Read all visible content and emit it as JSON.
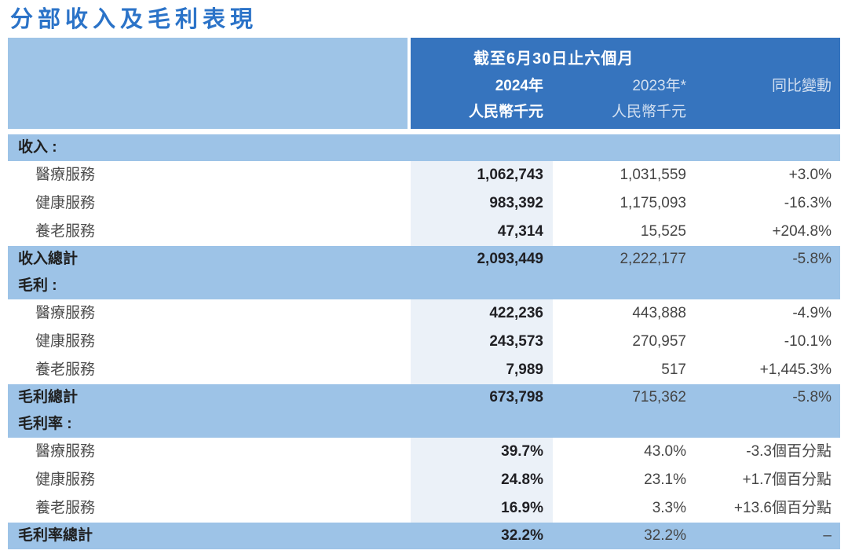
{
  "title": "分部收入及毛利表現",
  "colors": {
    "title_blue": "#2B73C8",
    "header_dark_blue": "#3674BE",
    "band_light_blue": "#9DC3E7",
    "column_2024_tint": "#EBF1F8"
  },
  "header": {
    "period": "截至6月30日止六個月",
    "col_2024": {
      "year": "2024年",
      "unit": "人民幣千元"
    },
    "col_2023": {
      "year": "2023年*",
      "unit": "人民幣千元"
    },
    "col_change": {
      "label": "同比變動"
    }
  },
  "rows": [
    {
      "type": "section",
      "label": "收入 :",
      "v2024": "",
      "v2023": "",
      "change": ""
    },
    {
      "type": "item",
      "label": "醫療服務",
      "v2024": "1,062,743",
      "v2023": "1,031,559",
      "change": "+3.0%"
    },
    {
      "type": "item",
      "label": "健康服務",
      "v2024": "983,392",
      "v2023": "1,175,093",
      "change": "-16.3%"
    },
    {
      "type": "item",
      "label": "養老服務",
      "v2024": "47,314",
      "v2023": "15,525",
      "change": "+204.8%"
    },
    {
      "type": "total",
      "label": "收入總計",
      "v2024": "2,093,449",
      "v2023": "2,222,177",
      "change": "-5.8%"
    },
    {
      "type": "section",
      "label": "毛利 :",
      "v2024": "",
      "v2023": "",
      "change": ""
    },
    {
      "type": "item",
      "label": "醫療服務",
      "v2024": "422,236",
      "v2023": "443,888",
      "change": "-4.9%"
    },
    {
      "type": "item",
      "label": "健康服務",
      "v2024": "243,573",
      "v2023": "270,957",
      "change": "-10.1%"
    },
    {
      "type": "item",
      "label": "養老服務",
      "v2024": "7,989",
      "v2023": "517",
      "change": "+1,445.3%"
    },
    {
      "type": "total",
      "label": "毛利總計",
      "v2024": "673,798",
      "v2023": "715,362",
      "change": "-5.8%"
    },
    {
      "type": "section",
      "label": "毛利率 :",
      "v2024": "",
      "v2023": "",
      "change": ""
    },
    {
      "type": "item",
      "label": "醫療服務",
      "v2024": "39.7%",
      "v2023": "43.0%",
      "change": "-3.3個百分點"
    },
    {
      "type": "item",
      "label": "健康服務",
      "v2024": "24.8%",
      "v2023": "23.1%",
      "change": "+1.7個百分點"
    },
    {
      "type": "item",
      "label": "養老服務",
      "v2024": "16.9%",
      "v2023": "3.3%",
      "change": "+13.6個百分點"
    },
    {
      "type": "total",
      "label": "毛利率總計",
      "v2024": "32.2%",
      "v2023": "32.2%",
      "change": "–"
    }
  ]
}
